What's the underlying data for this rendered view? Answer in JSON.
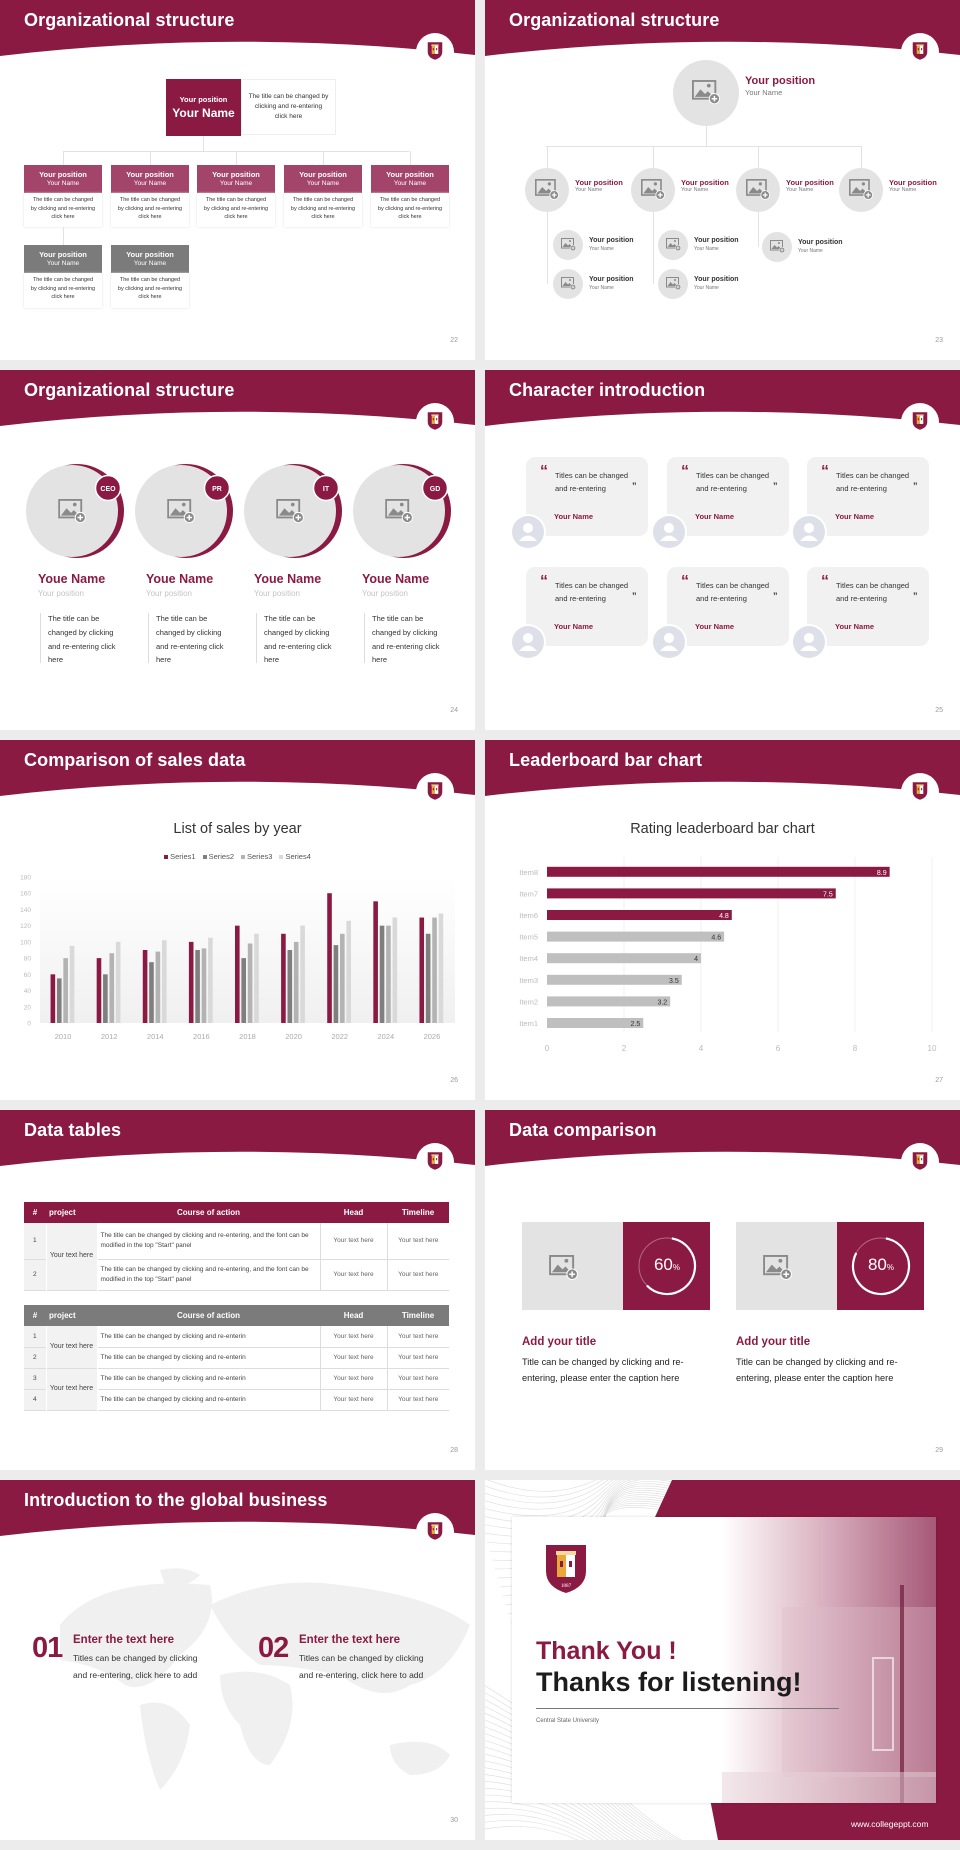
{
  "theme": {
    "maroon": "#8b1a42",
    "maroon_light": "#a3456a",
    "gray": "#7b7b7b",
    "light_gray": "#e3e3e3"
  },
  "slide22": {
    "title": "Organizational structure",
    "page": "22",
    "top": {
      "position": "Your position",
      "name": "Your Name",
      "desc": "The title can be changed by clicking and re-entering click here"
    },
    "children": [
      {
        "position": "Your position",
        "name": "Your Name",
        "desc": "The title can be changed by clicking and re-entering click here"
      },
      {
        "position": "Your position",
        "name": "Your Name",
        "desc": "The title can be changed by clicking and re-entering click here"
      },
      {
        "position": "Your position",
        "name": "Your Name",
        "desc": "The title can be changed by clicking and re-entering click here"
      },
      {
        "position": "Your position",
        "name": "Your Name",
        "desc": "The title can be changed by clicking and re-entering click here"
      },
      {
        "position": "Your position",
        "name": "Your Name",
        "desc": "The title can be changed by clicking and re-entering click here"
      }
    ],
    "sub": [
      {
        "position": "Your position",
        "name": "Your Name",
        "desc": "The title can be changed by clicking and re-entering click here"
      },
      {
        "position": "Your position",
        "name": "Your Name",
        "desc": "The title can be changed by clicking and re-entering click here"
      }
    ]
  },
  "slide23": {
    "title": "Organizational structure",
    "page": "23",
    "root": {
      "position": "Your position",
      "name": "Your Name"
    },
    "level1": [
      {
        "position": "Your position",
        "name": "Your Name"
      },
      {
        "position": "Your position",
        "name": "Your Name"
      },
      {
        "position": "Your position",
        "name": "Your Name"
      },
      {
        "position": "Your position",
        "name": "Your Name"
      }
    ],
    "level2": [
      {
        "position": "Your position",
        "name": "Your Name"
      },
      {
        "position": "Your position",
        "name": "Your Name"
      },
      {
        "position": "Your position",
        "name": "Your Name"
      },
      {
        "position": "Your position",
        "name": "Your Name"
      },
      {
        "position": "Your position",
        "name": "Your Name"
      }
    ]
  },
  "slide24": {
    "title": "Organizational structure",
    "page": "24",
    "members": [
      {
        "badge": "CEO",
        "name": "Youe Name",
        "position": "Your position",
        "desc": "The title can be changed by clicking and re-entering click here"
      },
      {
        "badge": "PR",
        "name": "Youe Name",
        "position": "Your position",
        "desc": "The title can be changed by clicking and re-entering click here"
      },
      {
        "badge": "IT",
        "name": "Youe Name",
        "position": "Your position",
        "desc": "The title can be changed by clicking and re-entering click here"
      },
      {
        "badge": "GD",
        "name": "Youe Name",
        "position": "Your position",
        "desc": "The title can be changed by clicking and re-entering click here"
      }
    ]
  },
  "slide25": {
    "title": "Character introduction",
    "page": "25",
    "open_quote": "“",
    "close_quote": "”",
    "cards": [
      {
        "quote": "Titles can be changed and re-entering",
        "name": "Your Name"
      },
      {
        "quote": "Titles can be changed and re-entering",
        "name": "Your Name"
      },
      {
        "quote": "Titles can be changed and re-entering",
        "name": "Your Name"
      },
      {
        "quote": "Titles can be changed and re-entering",
        "name": "Your Name"
      },
      {
        "quote": "Titles can be changed and re-entering",
        "name": "Your Name"
      },
      {
        "quote": "Titles can be changed and re-entering",
        "name": "Your Name"
      }
    ]
  },
  "slide26": {
    "title": "Comparison of sales data",
    "page": "26"
  },
  "slide27": {
    "title": "Leaderboard bar chart",
    "page": "27"
  },
  "chart_data": [
    {
      "type": "bar",
      "title": "List of sales by year",
      "categories": [
        "2010",
        "2012",
        "2014",
        "2016",
        "2018",
        "2020",
        "2022",
        "2024",
        "2026"
      ],
      "series": [
        {
          "name": "Series1",
          "color": "#8b1a42",
          "values": [
            60,
            80,
            90,
            100,
            120,
            110,
            160,
            150,
            130
          ]
        },
        {
          "name": "Series2",
          "color": "#7f7f7f",
          "values": [
            55,
            60,
            75,
            90,
            80,
            90,
            96,
            120,
            110
          ]
        },
        {
          "name": "Series3",
          "color": "#b3b3b3",
          "values": [
            80,
            86,
            88,
            92,
            98,
            100,
            110,
            120,
            130
          ]
        },
        {
          "name": "Series4",
          "color": "#d9d9d9",
          "values": [
            95,
            100,
            102,
            105,
            110,
            120,
            126,
            130,
            135
          ]
        }
      ],
      "yticks": [
        "0",
        "20",
        "40",
        "60",
        "80",
        "100",
        "120",
        "140",
        "160",
        "180"
      ],
      "ylim": [
        0,
        180
      ],
      "legend": "top",
      "grid": false,
      "xlabel": "",
      "ylabel": ""
    },
    {
      "type": "bar",
      "orientation": "horizontal",
      "title": "Rating leaderboard bar chart",
      "categories": [
        "Item1",
        "Item2",
        "Item3",
        "Item4",
        "Item5",
        "Item6",
        "Item7",
        "Item8"
      ],
      "values": [
        2.5,
        3.2,
        3.5,
        4,
        4.6,
        4.8,
        7.5,
        8.9
      ],
      "colors": [
        "#bfbfbf",
        "#bfbfbf",
        "#bfbfbf",
        "#bfbfbf",
        "#bfbfbf",
        "#8b1a42",
        "#8b1a42",
        "#8b1a42"
      ],
      "labels": [
        "2.5",
        "3.2",
        "3.5",
        "4",
        "4.6",
        "4.8",
        "7.5",
        "8.9"
      ],
      "xticks": [
        "0",
        "2",
        "4",
        "6",
        "8",
        "10"
      ],
      "xlim": [
        0,
        10
      ],
      "grid": true,
      "xlabel": "",
      "ylabel": ""
    }
  ],
  "slide28": {
    "title": "Data tables",
    "page": "28",
    "table1": {
      "headers": [
        "#",
        "project",
        "Course of action",
        "Head",
        "Timeline"
      ],
      "project": "Your text here",
      "rows": [
        {
          "num": "1",
          "course": "The title can be changed by clicking and re-entering, and the font can be modified in the top \"Start\" panel",
          "head": "Your text here",
          "timeline": "Your text here"
        },
        {
          "num": "2",
          "course": "The title can be changed by clicking and re-entering, and the font can be modified in the top \"Start\" panel",
          "head": "Your text here",
          "timeline": "Your text here"
        }
      ]
    },
    "table2": {
      "headers": [
        "#",
        "project",
        "Course of action",
        "Head",
        "Timeline"
      ],
      "projects": [
        "Your text here",
        "Your text here"
      ],
      "rows": [
        {
          "num": "1",
          "course": "The title can be changed by clicking and re-enterin",
          "head": "Your text here",
          "timeline": "Your text here"
        },
        {
          "num": "2",
          "course": "The title can be changed by clicking and re-enterin",
          "head": "Your text here",
          "timeline": "Your text here"
        },
        {
          "num": "3",
          "course": "The title can be changed by clicking and re-enterin",
          "head": "Your text here",
          "timeline": "Your text here"
        },
        {
          "num": "4",
          "course": "The title can be changed by clicking and re-enterin",
          "head": "Your text here",
          "timeline": "Your text here"
        }
      ]
    }
  },
  "slide29": {
    "title": "Data comparison",
    "page": "29",
    "panels": [
      {
        "percent": 60,
        "value": "60",
        "unit": "%",
        "title": "Add your title",
        "desc": "Title can be changed by clicking and re-entering, please enter the caption here"
      },
      {
        "percent": 80,
        "value": "80",
        "unit": "%",
        "title": "Add your title",
        "desc": "Title can be changed by clicking and re-entering, please enter the caption here"
      }
    ]
  },
  "slide30": {
    "title": "Introduction to the global business",
    "page": "30",
    "items": [
      {
        "num": "01",
        "heading": "Enter the text here",
        "desc": "Titles can be changed by clicking and re-entering, click here to add"
      },
      {
        "num": "02",
        "heading": "Enter the text here",
        "desc": "Titles can be changed by clicking and re-entering, click here to add"
      }
    ]
  },
  "slide31": {
    "thank_you": "Thank You !",
    "thanks": "Thanks for listening!",
    "university": "Central State University",
    "website": "www.collegeppt.com",
    "logo_year": "1887"
  }
}
